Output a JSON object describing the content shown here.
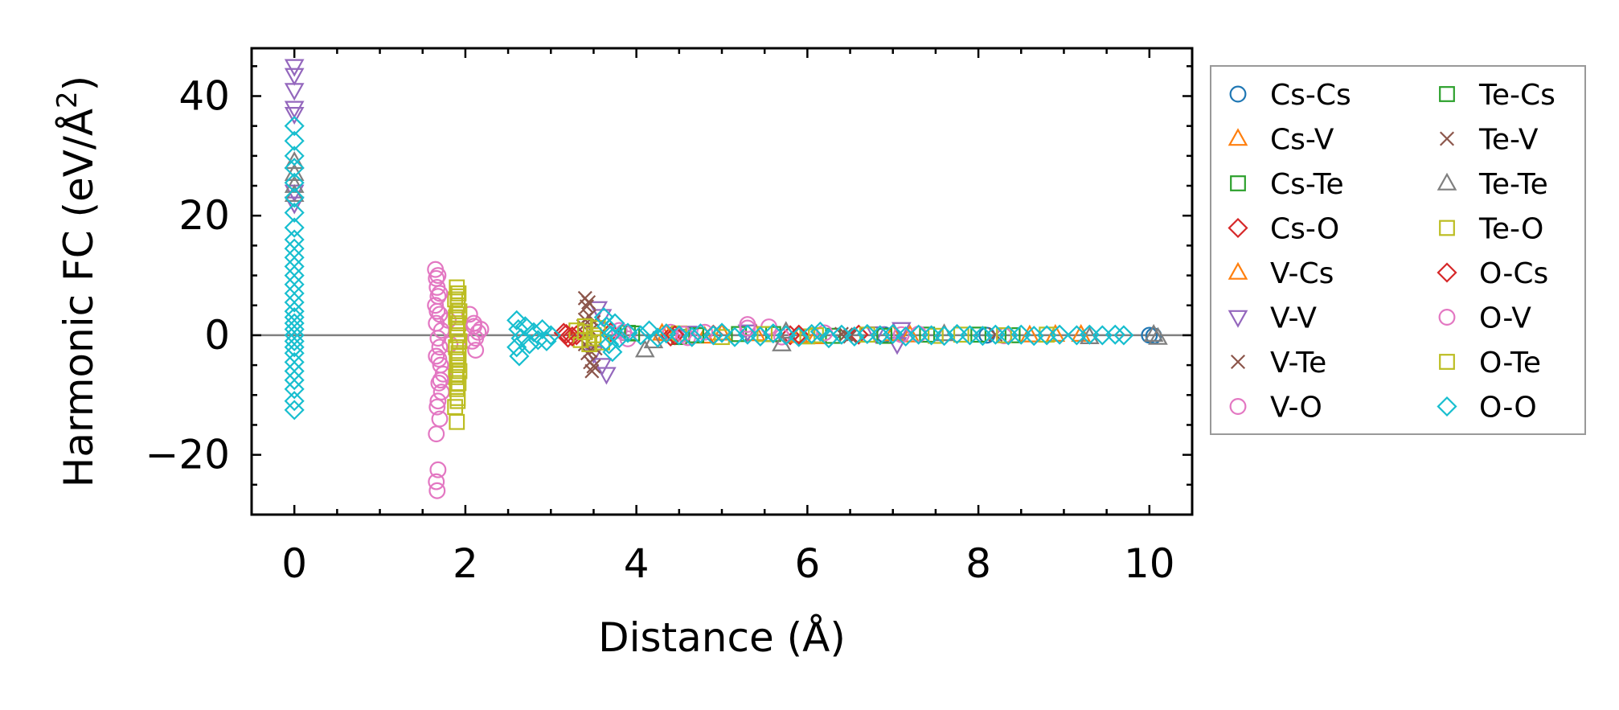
{
  "chart_data": {
    "type": "scatter",
    "title": "",
    "xlabel": "Distance (Å)",
    "ylabel_main": "Harmonic FC (eV/Å",
    "ylabel_sup": "2",
    "ylabel_close": ")",
    "xlim": [
      -0.5,
      10.5
    ],
    "ylim": [
      -30,
      48
    ],
    "xticks": [
      0,
      2,
      4,
      6,
      8,
      10
    ],
    "yticks": [
      -20,
      0,
      20,
      40
    ],
    "xtick_labels": [
      "0",
      "2",
      "4",
      "6",
      "8",
      "10"
    ],
    "ytick_labels": [
      "−20",
      "0",
      "20",
      "40"
    ],
    "zero_line": 0,
    "grid": false,
    "legend_position": "outside-right",
    "series": [
      {
        "name": "Cs-Cs",
        "marker": "circle",
        "color": "#1f77b4",
        "points": [
          [
            10.0,
            0.0
          ],
          [
            10.05,
            -0.1
          ],
          [
            6.9,
            0.1
          ],
          [
            8.1,
            0.0
          ]
        ]
      },
      {
        "name": "Cs-V",
        "marker": "triangle-up",
        "color": "#ff7f0e",
        "points": [
          [
            4.3,
            0.3
          ],
          [
            4.8,
            -0.2
          ],
          [
            5.4,
            0.2
          ],
          [
            6.1,
            -0.3
          ],
          [
            7.0,
            0.2
          ],
          [
            8.6,
            0.0
          ],
          [
            9.2,
            0.1
          ]
        ]
      },
      {
        "name": "Cs-Te",
        "marker": "square",
        "color": "#2ca02c",
        "points": [
          [
            3.9,
            0.4
          ],
          [
            4.5,
            -0.3
          ],
          [
            5.2,
            0.2
          ],
          [
            6.3,
            -0.1
          ],
          [
            7.4,
            0.1
          ],
          [
            8.4,
            0.0
          ]
        ]
      },
      {
        "name": "Cs-O",
        "marker": "diamond",
        "color": "#d62728",
        "points": [
          [
            3.15,
            0.4
          ],
          [
            3.2,
            -0.4
          ],
          [
            3.3,
            0.0
          ],
          [
            3.7,
            0.5
          ],
          [
            4.4,
            -0.2
          ],
          [
            4.9,
            0.1
          ],
          [
            5.8,
            0.0
          ],
          [
            6.6,
            0.1
          ]
        ]
      },
      {
        "name": "V-Cs",
        "marker": "triangle-up",
        "color": "#ff7f0e",
        "points": [
          [
            4.35,
            0.2
          ],
          [
            5.0,
            0.3
          ],
          [
            5.9,
            -0.1
          ],
          [
            7.2,
            0.0
          ],
          [
            8.9,
            0.1
          ]
        ]
      },
      {
        "name": "V-V",
        "marker": "triangle-down",
        "color": "#9467bd",
        "points": [
          [
            0.0,
            45.0
          ],
          [
            0.0,
            43.5
          ],
          [
            0.0,
            41.0
          ],
          [
            0.0,
            38.0
          ],
          [
            0.0,
            37.0
          ],
          [
            0.0,
            24.0
          ],
          [
            0.0,
            22.0
          ],
          [
            3.55,
            4.5
          ],
          [
            3.6,
            3.2
          ],
          [
            3.6,
            -5.0
          ],
          [
            3.65,
            -6.5
          ],
          [
            3.5,
            -3.0
          ],
          [
            7.1,
            1.0
          ],
          [
            7.05,
            -1.5
          ],
          [
            6.8,
            0.3
          ],
          [
            5.3,
            0.6
          ],
          [
            4.6,
            0.4
          ]
        ]
      },
      {
        "name": "V-Te",
        "marker": "x",
        "color": "#8c564b",
        "points": [
          [
            3.4,
            6.2
          ],
          [
            3.42,
            4.8
          ],
          [
            3.45,
            3.2
          ],
          [
            3.38,
            1.5
          ],
          [
            3.4,
            -1.5
          ],
          [
            3.43,
            -3.0
          ],
          [
            3.46,
            -4.5
          ],
          [
            3.48,
            -6.0
          ],
          [
            3.5,
            2.2
          ],
          [
            3.52,
            -2.2
          ],
          [
            6.4,
            0.2
          ],
          [
            6.5,
            -0.2
          ],
          [
            8.2,
            0.1
          ]
        ]
      },
      {
        "name": "V-O",
        "marker": "circle",
        "color": "#e377c2",
        "points": [
          [
            1.65,
            11.0
          ],
          [
            1.66,
            9.5
          ],
          [
            1.67,
            8.0
          ],
          [
            1.68,
            6.5
          ],
          [
            1.65,
            5.0
          ],
          [
            1.7,
            3.5
          ],
          [
            1.66,
            2.0
          ],
          [
            1.72,
            0.8
          ],
          [
            1.68,
            -0.5
          ],
          [
            1.7,
            -2.0
          ],
          [
            1.66,
            -3.5
          ],
          [
            1.71,
            -5.0
          ],
          [
            1.74,
            -6.5
          ],
          [
            1.69,
            -8.0
          ],
          [
            1.72,
            -9.5
          ],
          [
            1.67,
            -12.0
          ],
          [
            1.7,
            -14.0
          ],
          [
            1.66,
            -16.5
          ],
          [
            1.68,
            -22.5
          ],
          [
            1.66,
            -24.5
          ],
          [
            1.67,
            -26.0
          ],
          [
            1.8,
            2.5
          ],
          [
            1.82,
            -1.5
          ],
          [
            2.05,
            3.5
          ],
          [
            2.1,
            2.0
          ],
          [
            2.15,
            0.5
          ],
          [
            2.08,
            -1.0
          ],
          [
            2.12,
            -2.5
          ],
          [
            2.18,
            1.0
          ],
          [
            3.8,
            0.8
          ],
          [
            3.9,
            -0.6
          ],
          [
            4.4,
            0.5
          ],
          [
            4.6,
            -0.4
          ],
          [
            4.8,
            0.5
          ],
          [
            5.3,
            1.8
          ],
          [
            5.55,
            1.4
          ],
          [
            5.7,
            -0.3
          ],
          [
            6.2,
            0.4
          ],
          [
            7.3,
            0.2
          ],
          [
            8.3,
            -0.1
          ]
        ]
      },
      {
        "name": "Te-Cs",
        "marker": "square",
        "color": "#2ca02c",
        "points": [
          [
            3.95,
            0.3
          ],
          [
            4.7,
            0.0
          ],
          [
            5.6,
            0.2
          ],
          [
            6.9,
            -0.1
          ],
          [
            8.0,
            0.1
          ]
        ]
      },
      {
        "name": "Te-V",
        "marker": "x",
        "color": "#8c564b",
        "points": [
          [
            3.44,
            5.5
          ],
          [
            3.4,
            2.6
          ],
          [
            3.46,
            -2.6
          ],
          [
            3.5,
            -5.2
          ],
          [
            3.47,
            0.8
          ],
          [
            6.45,
            0.1
          ]
        ]
      },
      {
        "name": "Te-Te",
        "marker": "triangle-up",
        "color": "#7f7f7f",
        "points": [
          [
            0.0,
            29.0
          ],
          [
            0.0,
            27.0
          ],
          [
            0.0,
            25.0
          ],
          [
            0.0,
            23.5
          ],
          [
            4.1,
            -2.5
          ],
          [
            4.2,
            -1.0
          ],
          [
            5.7,
            -1.5
          ],
          [
            5.75,
            0.6
          ],
          [
            7.6,
            0.2
          ],
          [
            9.3,
            -0.3
          ],
          [
            10.05,
            0.1
          ],
          [
            10.1,
            -0.4
          ]
        ]
      },
      {
        "name": "Te-O",
        "marker": "square",
        "color": "#bcbd22",
        "points": [
          [
            1.9,
            8.0
          ],
          [
            1.92,
            7.0
          ],
          [
            1.88,
            6.0
          ],
          [
            1.91,
            5.0
          ],
          [
            1.93,
            4.0
          ],
          [
            1.89,
            3.0
          ],
          [
            1.92,
            2.0
          ],
          [
            1.9,
            1.0
          ],
          [
            1.91,
            0.0
          ],
          [
            1.93,
            -1.0
          ],
          [
            1.89,
            -2.0
          ],
          [
            1.92,
            -3.0
          ],
          [
            1.9,
            -4.0
          ],
          [
            1.91,
            -5.0
          ],
          [
            1.93,
            -6.0
          ],
          [
            1.89,
            -7.0
          ],
          [
            1.92,
            -8.0
          ],
          [
            1.9,
            -9.0
          ],
          [
            1.91,
            -10.5
          ],
          [
            1.88,
            -12.0
          ],
          [
            1.9,
            -14.5
          ],
          [
            3.3,
            0.8
          ],
          [
            3.35,
            -0.8
          ],
          [
            3.4,
            1.5
          ],
          [
            3.45,
            -1.5
          ],
          [
            3.5,
            0.0
          ],
          [
            3.55,
            1.2
          ],
          [
            3.6,
            -1.2
          ],
          [
            4.5,
            0.3
          ],
          [
            5.0,
            -0.3
          ],
          [
            5.5,
            0.2
          ],
          [
            6.0,
            -0.2
          ],
          [
            6.7,
            0.1
          ],
          [
            7.5,
            -0.1
          ],
          [
            8.3,
            0.0
          ],
          [
            8.8,
            0.1
          ]
        ]
      },
      {
        "name": "O-Cs",
        "marker": "diamond",
        "color": "#d62728",
        "points": [
          [
            3.18,
            0.2
          ],
          [
            3.25,
            -0.2
          ],
          [
            4.45,
            0.0
          ],
          [
            5.9,
            0.1
          ]
        ]
      },
      {
        "name": "O-V",
        "marker": "circle",
        "color": "#e377c2",
        "points": [
          [
            1.68,
            10.0
          ],
          [
            1.7,
            7.0
          ],
          [
            1.67,
            4.0
          ],
          [
            1.69,
            -4.0
          ],
          [
            1.71,
            -7.5
          ],
          [
            1.68,
            -11.0
          ],
          [
            2.1,
            1.5
          ],
          [
            2.12,
            -0.5
          ],
          [
            3.85,
            0.5
          ],
          [
            4.55,
            0.2
          ],
          [
            5.3,
            1.2
          ],
          [
            7.1,
            0.1
          ]
        ]
      },
      {
        "name": "O-Te",
        "marker": "square",
        "color": "#bcbd22",
        "points": [
          [
            1.91,
            6.5
          ],
          [
            1.9,
            3.5
          ],
          [
            1.92,
            -3.5
          ],
          [
            1.9,
            -6.5
          ],
          [
            1.91,
            -11.0
          ],
          [
            3.4,
            0.5
          ],
          [
            3.5,
            -0.5
          ],
          [
            6.1,
            0.0
          ],
          [
            7.8,
            0.1
          ]
        ]
      },
      {
        "name": "O-O",
        "marker": "diamond",
        "color": "#17becf",
        "points": [
          [
            0.0,
            35.0
          ],
          [
            0.0,
            32.5
          ],
          [
            0.0,
            30.0
          ],
          [
            0.0,
            28.0
          ],
          [
            0.0,
            25.5
          ],
          [
            0.0,
            23.0
          ],
          [
            0.0,
            20.5
          ],
          [
            0.0,
            18.0
          ],
          [
            0.0,
            16.0
          ],
          [
            0.0,
            14.5
          ],
          [
            0.0,
            13.0
          ],
          [
            0.0,
            11.5
          ],
          [
            0.0,
            10.0
          ],
          [
            0.0,
            8.5
          ],
          [
            0.0,
            7.0
          ],
          [
            0.0,
            5.5
          ],
          [
            0.0,
            4.0
          ],
          [
            0.0,
            3.0
          ],
          [
            0.0,
            2.0
          ],
          [
            0.0,
            1.0
          ],
          [
            0.0,
            0.0
          ],
          [
            0.0,
            -1.0
          ],
          [
            0.0,
            -2.0
          ],
          [
            0.0,
            -3.0
          ],
          [
            0.0,
            -4.5
          ],
          [
            0.0,
            -6.0
          ],
          [
            0.0,
            -7.5
          ],
          [
            0.0,
            -9.0
          ],
          [
            0.0,
            -11.0
          ],
          [
            0.0,
            -12.5
          ],
          [
            2.6,
            2.5
          ],
          [
            2.62,
            1.0
          ],
          [
            2.65,
            -0.5
          ],
          [
            2.6,
            -2.0
          ],
          [
            2.63,
            -3.5
          ],
          [
            2.7,
            1.5
          ],
          [
            2.75,
            -1.5
          ],
          [
            2.8,
            0.5
          ],
          [
            2.85,
            -0.8
          ],
          [
            2.9,
            1.0
          ],
          [
            2.95,
            -1.0
          ],
          [
            3.0,
            0.0
          ],
          [
            3.62,
            3.0
          ],
          [
            3.65,
            1.5
          ],
          [
            3.7,
            0.0
          ],
          [
            3.68,
            -1.5
          ],
          [
            3.72,
            -2.8
          ],
          [
            3.75,
            2.0
          ],
          [
            3.8,
            -0.5
          ],
          [
            3.9,
            0.4
          ],
          [
            4.05,
            0.0
          ],
          [
            4.15,
            0.8
          ],
          [
            4.25,
            -0.4
          ],
          [
            4.35,
            0.3
          ],
          [
            4.5,
            0.0
          ],
          [
            4.65,
            -0.3
          ],
          [
            4.75,
            0.3
          ],
          [
            4.9,
            0.0
          ],
          [
            5.0,
            0.4
          ],
          [
            5.15,
            -0.3
          ],
          [
            5.3,
            0.1
          ],
          [
            5.45,
            -0.2
          ],
          [
            5.6,
            0.3
          ],
          [
            5.75,
            0.0
          ],
          [
            5.9,
            -0.3
          ],
          [
            6.05,
            0.2
          ],
          [
            6.15,
            0.6
          ],
          [
            6.25,
            -0.5
          ],
          [
            6.4,
            0.1
          ],
          [
            6.55,
            -0.2
          ],
          [
            6.7,
            0.2
          ],
          [
            6.85,
            0.0
          ],
          [
            7.0,
            0.2
          ],
          [
            7.15,
            -0.2
          ],
          [
            7.3,
            0.1
          ],
          [
            7.45,
            0.0
          ],
          [
            7.6,
            -0.1
          ],
          [
            7.75,
            0.2
          ],
          [
            7.9,
            0.0
          ],
          [
            8.05,
            -0.1
          ],
          [
            8.2,
            0.1
          ],
          [
            8.35,
            0.0
          ],
          [
            8.5,
            0.1
          ],
          [
            8.65,
            -0.1
          ],
          [
            8.8,
            0.0
          ],
          [
            8.95,
            0.1
          ],
          [
            9.15,
            0.0
          ],
          [
            9.3,
            0.1
          ],
          [
            9.45,
            0.0
          ],
          [
            9.6,
            0.1
          ],
          [
            9.7,
            0.0
          ]
        ]
      }
    ],
    "legend_order": [
      [
        "Cs-Cs",
        "Cs-V",
        "Cs-Te",
        "Cs-O",
        "V-Cs",
        "V-V",
        "V-Te",
        "V-O"
      ],
      [
        "Te-Cs",
        "Te-V",
        "Te-Te",
        "Te-O",
        "O-Cs",
        "O-V",
        "O-Te",
        "O-O"
      ]
    ]
  }
}
